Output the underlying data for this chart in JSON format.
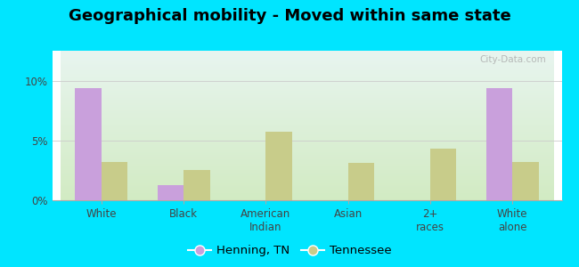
{
  "title": "Geographical mobility - Moved within same state",
  "categories": [
    "White",
    "Black",
    "American\nIndian",
    "Asian",
    "2+\nraces",
    "White\nalone"
  ],
  "henning_values": [
    9.4,
    1.3,
    0.0,
    0.0,
    0.0,
    9.4
  ],
  "tennessee_values": [
    3.2,
    2.5,
    5.7,
    3.1,
    4.3,
    3.2
  ],
  "henning_color": "#c9a0dc",
  "tennessee_color": "#c8cc8a",
  "bar_width": 0.32,
  "ylim": [
    0,
    12.5
  ],
  "yticks": [
    0,
    5,
    10
  ],
  "ytick_labels": [
    "0%",
    "5%",
    "10%"
  ],
  "background_outer": "#00e5ff",
  "bg_top": "#e8f5f0",
  "bg_bottom": "#d8eecc",
  "grid_color": "#cccccc",
  "legend_henning": "Henning, TN",
  "legend_tennessee": "Tennessee",
  "title_fontsize": 13,
  "tick_fontsize": 8.5,
  "legend_fontsize": 9.5
}
